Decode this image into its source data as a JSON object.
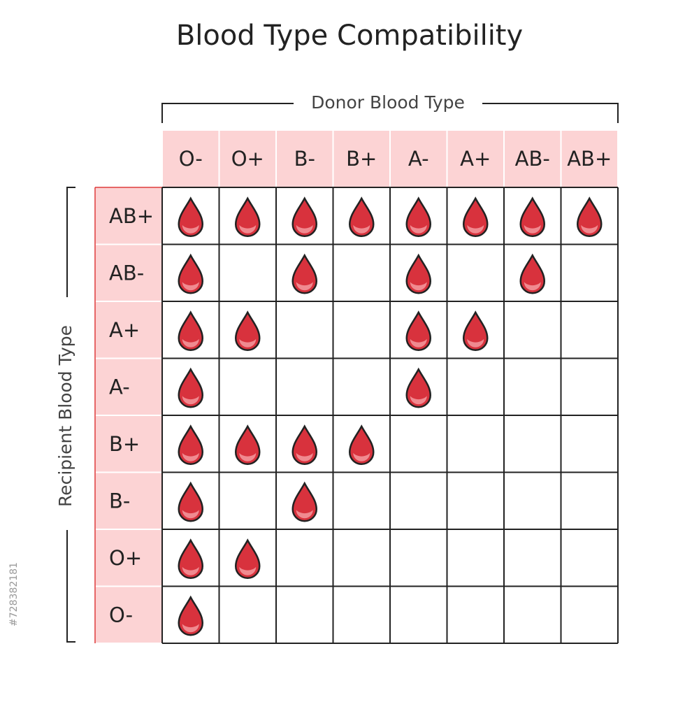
{
  "title": "Blood Type Compatibility",
  "donor_label": "Donor Blood Type",
  "recipient_label": "Recipient Blood Type",
  "watermark": "#728382181",
  "columns": [
    "O-",
    "O+",
    "B-",
    "B+",
    "A-",
    "A+",
    "AB-",
    "AB+"
  ],
  "rows": [
    {
      "label": "AB+",
      "compatible": [
        true,
        true,
        true,
        true,
        true,
        true,
        true,
        true
      ]
    },
    {
      "label": "AB-",
      "compatible": [
        true,
        false,
        true,
        false,
        true,
        false,
        true,
        false
      ]
    },
    {
      "label": "A+",
      "compatible": [
        true,
        true,
        false,
        false,
        true,
        true,
        false,
        false
      ]
    },
    {
      "label": "A-",
      "compatible": [
        true,
        false,
        false,
        false,
        true,
        false,
        false,
        false
      ]
    },
    {
      "label": "B+",
      "compatible": [
        true,
        true,
        true,
        true,
        false,
        false,
        false,
        false
      ]
    },
    {
      "label": "B-",
      "compatible": [
        true,
        false,
        true,
        false,
        false,
        false,
        false,
        false
      ]
    },
    {
      "label": "O+",
      "compatible": [
        true,
        true,
        false,
        false,
        false,
        false,
        false,
        false
      ]
    },
    {
      "label": "O-",
      "compatible": [
        true,
        false,
        false,
        false,
        false,
        false,
        false,
        false
      ]
    }
  ]
}
